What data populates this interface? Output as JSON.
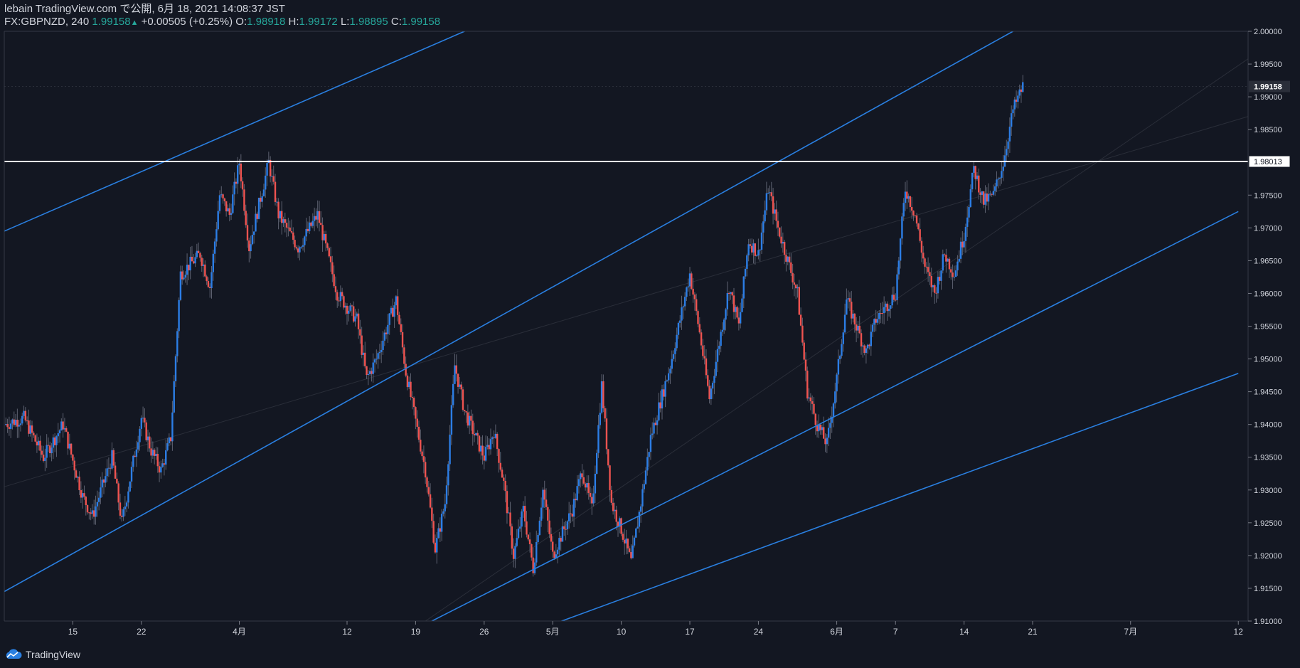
{
  "header": {
    "line1": "lebain TradingView.com で公開, 6月 18, 2021 14:08:37 JST",
    "symbol": "FX:GBPNZD, 240",
    "last": "1.99158",
    "arrow": "▲",
    "change": "+0.00505 (+0.25%)",
    "o_label": "O:",
    "o_value": "1.98918",
    "h_label": "H:",
    "h_value": "1.99172",
    "l_label": "L:",
    "l_value": "1.98895",
    "c_label": "C:",
    "c_value": "1.99158"
  },
  "footer": {
    "brand": "TradingView",
    "logo_icon": "tradingview-cloud-icon"
  },
  "colors": {
    "background": "#131722",
    "up": "#2c7ee6",
    "down": "#ef5350",
    "trendline": "#2a7fe0",
    "support_line": "#ffffff",
    "axis_text": "#d1d4dc",
    "price_green": "#26a69a"
  },
  "chart_data": {
    "type": "candlestick",
    "symbol": "FX:GBPNZD",
    "timeframe": "240",
    "ylim": [
      1.91,
      2.0
    ],
    "y_ticks": [
      "2.00000",
      "1.99500",
      "1.99000",
      "1.98500",
      "1.97500",
      "1.97000",
      "1.96500",
      "1.96000",
      "1.95500",
      "1.95000",
      "1.94500",
      "1.94000",
      "1.93500",
      "1.93000",
      "1.92500",
      "1.92000",
      "1.91500",
      "1.91000"
    ],
    "x_ticks": [
      {
        "label": "15",
        "date": "2021-03-15"
      },
      {
        "label": "22",
        "date": "2021-03-22"
      },
      {
        "label": "4月",
        "date": "2021-04-01"
      },
      {
        "label": "12",
        "date": "2021-04-12"
      },
      {
        "label": "19",
        "date": "2021-04-19"
      },
      {
        "label": "26",
        "date": "2021-04-26"
      },
      {
        "label": "5月",
        "date": "2021-05-03"
      },
      {
        "label": "10",
        "date": "2021-05-10"
      },
      {
        "label": "17",
        "date": "2021-05-17"
      },
      {
        "label": "24",
        "date": "2021-05-24"
      },
      {
        "label": "6月",
        "date": "2021-06-01"
      },
      {
        "label": "7",
        "date": "2021-06-07"
      },
      {
        "label": "14",
        "date": "2021-06-14"
      },
      {
        "label": "21",
        "date": "2021-06-21"
      },
      {
        "label": "7月",
        "date": "2021-07-01"
      },
      {
        "label": "12",
        "date": "2021-07-12"
      }
    ],
    "x_range": [
      "2021-03-08",
      "2021-07-13"
    ],
    "price_labels": [
      {
        "text": "1.99158",
        "value": 1.99158,
        "style": "last"
      },
      {
        "text": "1.98013",
        "value": 1.98013,
        "style": "level"
      }
    ],
    "horizontal_line": {
      "value": 1.98013
    },
    "trendlines": [
      {
        "start": [
          "2021-03-08",
          1.9695
        ],
        "end": [
          "2021-04-24",
          2.0
        ]
      },
      {
        "start": [
          "2021-03-08",
          1.9145
        ],
        "end": [
          "2021-06-19",
          2.0
        ]
      },
      {
        "start": [
          "2021-04-20",
          1.9095
        ],
        "end": [
          "2021-07-12",
          1.9725
        ]
      },
      {
        "start": [
          "2021-05-03",
          1.9095
        ],
        "end": [
          "2021-07-12",
          1.9478
        ]
      }
    ],
    "path": [
      [
        "2021-03-08",
        1.94
      ],
      [
        "2021-03-10",
        1.941
      ],
      [
        "2021-03-12",
        1.935
      ],
      [
        "2021-03-14",
        1.94
      ],
      [
        "2021-03-16",
        1.929
      ],
      [
        "2021-03-17",
        1.926
      ],
      [
        "2021-03-19",
        1.935
      ],
      [
        "2021-03-20",
        1.925
      ],
      [
        "2021-03-22",
        1.941
      ],
      [
        "2021-03-23",
        1.936
      ],
      [
        "2021-03-24",
        1.933
      ],
      [
        "2021-03-25",
        1.938
      ],
      [
        "2021-03-26",
        1.963
      ],
      [
        "2021-03-28",
        1.966
      ],
      [
        "2021-03-29",
        1.961
      ],
      [
        "2021-03-30",
        1.975
      ],
      [
        "2021-03-31",
        1.972
      ],
      [
        "2021-04-01",
        1.98
      ],
      [
        "2021-04-02",
        1.967
      ],
      [
        "2021-04-04",
        1.98
      ],
      [
        "2021-04-05",
        1.972
      ],
      [
        "2021-04-07",
        1.967
      ],
      [
        "2021-04-09",
        1.972
      ],
      [
        "2021-04-11",
        1.96
      ],
      [
        "2021-04-13",
        1.956
      ],
      [
        "2021-04-14",
        1.947
      ],
      [
        "2021-04-15",
        1.95
      ],
      [
        "2021-04-17",
        1.959
      ],
      [
        "2021-04-18",
        1.948
      ],
      [
        "2021-04-20",
        1.933
      ],
      [
        "2021-04-21",
        1.921
      ],
      [
        "2021-04-22",
        1.928
      ],
      [
        "2021-04-23",
        1.949
      ],
      [
        "2021-04-24",
        1.942
      ],
      [
        "2021-04-26",
        1.935
      ],
      [
        "2021-04-27",
        1.939
      ],
      [
        "2021-04-28",
        1.931
      ],
      [
        "2021-04-29",
        1.92
      ],
      [
        "2021-04-30",
        1.927
      ],
      [
        "2021-05-01",
        1.918
      ],
      [
        "2021-05-02",
        1.93
      ],
      [
        "2021-05-03",
        1.92
      ],
      [
        "2021-05-05",
        1.927
      ],
      [
        "2021-05-06",
        1.933
      ],
      [
        "2021-05-07",
        1.927
      ],
      [
        "2021-05-08",
        1.946
      ],
      [
        "2021-05-09",
        1.928
      ],
      [
        "2021-05-10",
        1.924
      ],
      [
        "2021-05-11",
        1.919
      ],
      [
        "2021-05-12",
        1.928
      ],
      [
        "2021-05-13",
        1.938
      ],
      [
        "2021-05-15",
        1.949
      ],
      [
        "2021-05-17",
        1.963
      ],
      [
        "2021-05-18",
        1.954
      ],
      [
        "2021-05-19",
        1.944
      ],
      [
        "2021-05-21",
        1.961
      ],
      [
        "2021-05-22",
        1.955
      ],
      [
        "2021-05-23",
        1.968
      ],
      [
        "2021-05-24",
        1.966
      ],
      [
        "2021-05-25",
        1.976
      ],
      [
        "2021-05-26",
        1.97
      ],
      [
        "2021-05-28",
        1.96
      ],
      [
        "2021-05-29",
        1.945
      ],
      [
        "2021-05-30",
        1.94
      ],
      [
        "2021-05-31",
        1.937
      ],
      [
        "2021-06-01",
        1.947
      ],
      [
        "2021-06-02",
        1.959
      ],
      [
        "2021-06-03",
        1.955
      ],
      [
        "2021-06-04",
        1.951
      ],
      [
        "2021-06-05",
        1.956
      ],
      [
        "2021-06-07",
        1.96
      ],
      [
        "2021-06-08",
        1.976
      ],
      [
        "2021-06-09",
        1.972
      ],
      [
        "2021-06-10",
        1.964
      ],
      [
        "2021-06-11",
        1.96
      ],
      [
        "2021-06-12",
        1.966
      ],
      [
        "2021-06-13",
        1.963
      ],
      [
        "2021-06-14",
        1.969
      ],
      [
        "2021-06-15",
        1.979
      ],
      [
        "2021-06-16",
        1.974
      ],
      [
        "2021-06-17",
        1.975
      ],
      [
        "2021-06-18",
        1.98
      ],
      [
        "2021-06-19",
        1.988
      ],
      [
        "2021-06-20",
        1.9916
      ]
    ]
  }
}
